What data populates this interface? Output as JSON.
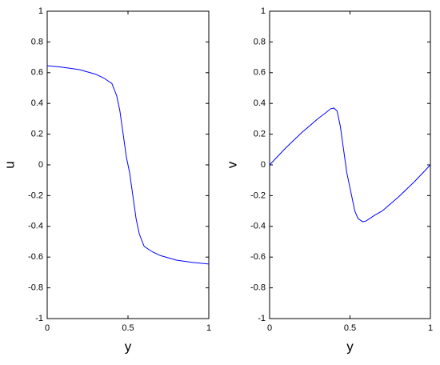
{
  "chart_data": [
    {
      "type": "line",
      "ylabel": "u",
      "xlabel": "y",
      "x": [
        0,
        0.1,
        0.2,
        0.3,
        0.35,
        0.4,
        0.43,
        0.45,
        0.47,
        0.49,
        0.5,
        0.51,
        0.53,
        0.55,
        0.57,
        0.6,
        0.65,
        0.7,
        0.8,
        0.9,
        1
      ],
      "series": [
        {
          "color": "#0000ff",
          "values": [
            0.645,
            0.635,
            0.62,
            0.59,
            0.565,
            0.53,
            0.45,
            0.35,
            0.2,
            0.05,
            0,
            -0.05,
            -0.2,
            -0.35,
            -0.45,
            -0.53,
            -0.565,
            -0.59,
            -0.62,
            -0.635,
            -0.645
          ]
        }
      ],
      "xlim": [
        0,
        1
      ],
      "ylim": [
        -1,
        1
      ],
      "xticks": [
        0,
        0.5,
        1
      ],
      "yticks": [
        -1,
        -0.8,
        -0.6,
        -0.4,
        -0.2,
        0,
        0.2,
        0.4,
        0.6,
        0.8,
        1
      ]
    },
    {
      "type": "line",
      "ylabel": "v",
      "xlabel": "y",
      "x": [
        0,
        0.1,
        0.2,
        0.3,
        0.35,
        0.38,
        0.4,
        0.42,
        0.44,
        0.46,
        0.48,
        0.5,
        0.53,
        0.55,
        0.58,
        0.6,
        0.65,
        0.7,
        0.8,
        0.9,
        1
      ],
      "series": [
        {
          "color": "#0000ff",
          "values": [
            0,
            0.11,
            0.21,
            0.3,
            0.34,
            0.365,
            0.37,
            0.35,
            0.25,
            0.1,
            -0.05,
            -0.15,
            -0.3,
            -0.35,
            -0.37,
            -0.365,
            -0.33,
            -0.3,
            -0.21,
            -0.11,
            0
          ]
        }
      ],
      "xlim": [
        0,
        1
      ],
      "ylim": [
        -1,
        1
      ],
      "xticks": [
        0,
        0.5,
        1
      ],
      "yticks": [
        -1,
        -0.8,
        -0.6,
        -0.4,
        -0.2,
        0,
        0.2,
        0.4,
        0.6,
        0.8,
        1
      ]
    }
  ]
}
